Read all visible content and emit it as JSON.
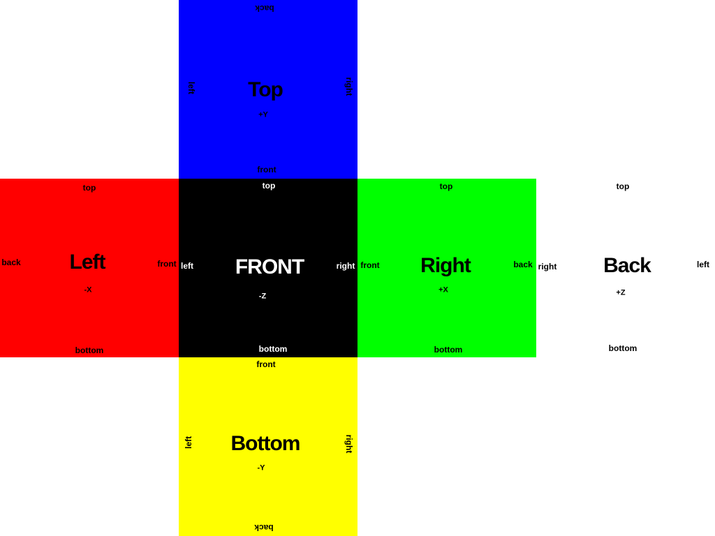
{
  "faces": {
    "top": {
      "color": "#0000ff",
      "text_color": "#000000",
      "title": "Top",
      "axis": "+Y",
      "edge_top": "back",
      "edge_bottom": "front",
      "edge_left": "left",
      "edge_right": "right"
    },
    "left": {
      "color": "#ff0000",
      "text_color": "#000000",
      "title": "Left",
      "axis": "-X",
      "edge_top": "top",
      "edge_bottom": "bottom",
      "edge_left": "back",
      "edge_right": "front"
    },
    "front": {
      "color": "#000000",
      "text_color": "#ffffff",
      "title": "FRONT",
      "axis": "-Z",
      "edge_top": "top",
      "edge_bottom": "bottom",
      "edge_left": "left",
      "edge_right": "right"
    },
    "right": {
      "color": "#00ff00",
      "text_color": "#000000",
      "title": "Right",
      "axis": "+X",
      "edge_top": "top",
      "edge_bottom": "bottom",
      "edge_left": "front",
      "edge_right": "back"
    },
    "back": {
      "color": "#ffffff",
      "text_color": "#000000",
      "title": "Back",
      "axis": "+Z",
      "edge_top": "top",
      "edge_bottom": "bottom",
      "edge_left": "right",
      "edge_right": "left"
    },
    "bottom": {
      "color": "#ffff00",
      "text_color": "#000000",
      "title": "Bottom",
      "axis": "-Y",
      "edge_top": "front",
      "edge_bottom": "back",
      "edge_left": "left",
      "edge_right": "right"
    }
  }
}
